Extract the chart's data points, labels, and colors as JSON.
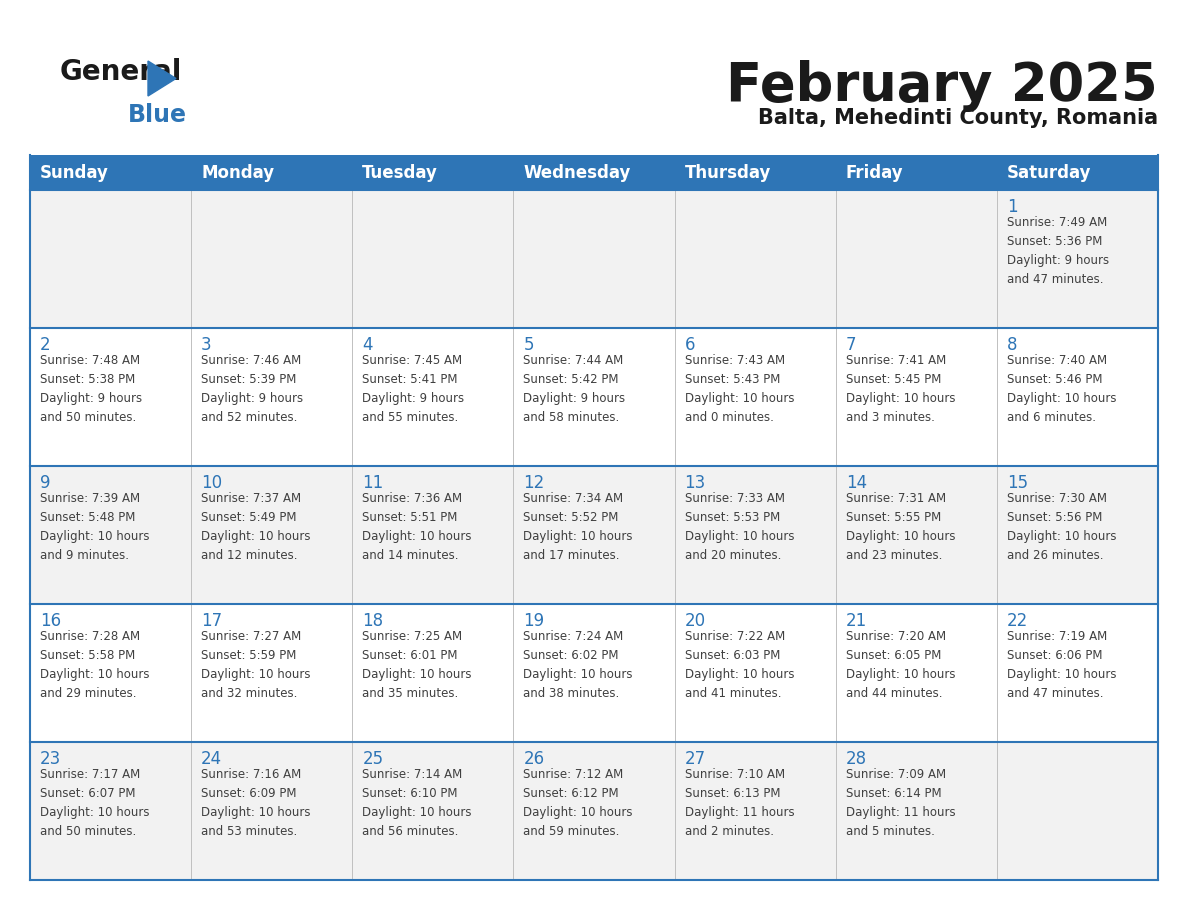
{
  "title": "February 2025",
  "subtitle": "Balta, Mehedinti County, Romania",
  "days_of_week": [
    "Sunday",
    "Monday",
    "Tuesday",
    "Wednesday",
    "Thursday",
    "Friday",
    "Saturday"
  ],
  "header_bg": "#2E75B6",
  "header_text": "#FFFFFF",
  "row_bg_odd": "#F2F2F2",
  "row_bg_even": "#FFFFFF",
  "cell_border_color": "#2E75B6",
  "cell_inner_border": "#C0C0C0",
  "day_number_color": "#2E75B6",
  "text_color": "#404040",
  "logo_general_color": "#1a1a1a",
  "logo_blue_color": "#2E75B6",
  "title_fontsize": 36,
  "subtitle_fontsize": 16,
  "header_fontsize": 12,
  "day_num_fontsize": 12,
  "cell_text_fontsize": 8.5,
  "calendar_data": [
    [
      {
        "day": "",
        "sunrise": "",
        "sunset": "",
        "daylight": ""
      },
      {
        "day": "",
        "sunrise": "",
        "sunset": "",
        "daylight": ""
      },
      {
        "day": "",
        "sunrise": "",
        "sunset": "",
        "daylight": ""
      },
      {
        "day": "",
        "sunrise": "",
        "sunset": "",
        "daylight": ""
      },
      {
        "day": "",
        "sunrise": "",
        "sunset": "",
        "daylight": ""
      },
      {
        "day": "",
        "sunrise": "",
        "sunset": "",
        "daylight": ""
      },
      {
        "day": "1",
        "sunrise": "Sunrise: 7:49 AM",
        "sunset": "Sunset: 5:36 PM",
        "daylight": "Daylight: 9 hours\nand 47 minutes."
      }
    ],
    [
      {
        "day": "2",
        "sunrise": "Sunrise: 7:48 AM",
        "sunset": "Sunset: 5:38 PM",
        "daylight": "Daylight: 9 hours\nand 50 minutes."
      },
      {
        "day": "3",
        "sunrise": "Sunrise: 7:46 AM",
        "sunset": "Sunset: 5:39 PM",
        "daylight": "Daylight: 9 hours\nand 52 minutes."
      },
      {
        "day": "4",
        "sunrise": "Sunrise: 7:45 AM",
        "sunset": "Sunset: 5:41 PM",
        "daylight": "Daylight: 9 hours\nand 55 minutes."
      },
      {
        "day": "5",
        "sunrise": "Sunrise: 7:44 AM",
        "sunset": "Sunset: 5:42 PM",
        "daylight": "Daylight: 9 hours\nand 58 minutes."
      },
      {
        "day": "6",
        "sunrise": "Sunrise: 7:43 AM",
        "sunset": "Sunset: 5:43 PM",
        "daylight": "Daylight: 10 hours\nand 0 minutes."
      },
      {
        "day": "7",
        "sunrise": "Sunrise: 7:41 AM",
        "sunset": "Sunset: 5:45 PM",
        "daylight": "Daylight: 10 hours\nand 3 minutes."
      },
      {
        "day": "8",
        "sunrise": "Sunrise: 7:40 AM",
        "sunset": "Sunset: 5:46 PM",
        "daylight": "Daylight: 10 hours\nand 6 minutes."
      }
    ],
    [
      {
        "day": "9",
        "sunrise": "Sunrise: 7:39 AM",
        "sunset": "Sunset: 5:48 PM",
        "daylight": "Daylight: 10 hours\nand 9 minutes."
      },
      {
        "day": "10",
        "sunrise": "Sunrise: 7:37 AM",
        "sunset": "Sunset: 5:49 PM",
        "daylight": "Daylight: 10 hours\nand 12 minutes."
      },
      {
        "day": "11",
        "sunrise": "Sunrise: 7:36 AM",
        "sunset": "Sunset: 5:51 PM",
        "daylight": "Daylight: 10 hours\nand 14 minutes."
      },
      {
        "day": "12",
        "sunrise": "Sunrise: 7:34 AM",
        "sunset": "Sunset: 5:52 PM",
        "daylight": "Daylight: 10 hours\nand 17 minutes."
      },
      {
        "day": "13",
        "sunrise": "Sunrise: 7:33 AM",
        "sunset": "Sunset: 5:53 PM",
        "daylight": "Daylight: 10 hours\nand 20 minutes."
      },
      {
        "day": "14",
        "sunrise": "Sunrise: 7:31 AM",
        "sunset": "Sunset: 5:55 PM",
        "daylight": "Daylight: 10 hours\nand 23 minutes."
      },
      {
        "day": "15",
        "sunrise": "Sunrise: 7:30 AM",
        "sunset": "Sunset: 5:56 PM",
        "daylight": "Daylight: 10 hours\nand 26 minutes."
      }
    ],
    [
      {
        "day": "16",
        "sunrise": "Sunrise: 7:28 AM",
        "sunset": "Sunset: 5:58 PM",
        "daylight": "Daylight: 10 hours\nand 29 minutes."
      },
      {
        "day": "17",
        "sunrise": "Sunrise: 7:27 AM",
        "sunset": "Sunset: 5:59 PM",
        "daylight": "Daylight: 10 hours\nand 32 minutes."
      },
      {
        "day": "18",
        "sunrise": "Sunrise: 7:25 AM",
        "sunset": "Sunset: 6:01 PM",
        "daylight": "Daylight: 10 hours\nand 35 minutes."
      },
      {
        "day": "19",
        "sunrise": "Sunrise: 7:24 AM",
        "sunset": "Sunset: 6:02 PM",
        "daylight": "Daylight: 10 hours\nand 38 minutes."
      },
      {
        "day": "20",
        "sunrise": "Sunrise: 7:22 AM",
        "sunset": "Sunset: 6:03 PM",
        "daylight": "Daylight: 10 hours\nand 41 minutes."
      },
      {
        "day": "21",
        "sunrise": "Sunrise: 7:20 AM",
        "sunset": "Sunset: 6:05 PM",
        "daylight": "Daylight: 10 hours\nand 44 minutes."
      },
      {
        "day": "22",
        "sunrise": "Sunrise: 7:19 AM",
        "sunset": "Sunset: 6:06 PM",
        "daylight": "Daylight: 10 hours\nand 47 minutes."
      }
    ],
    [
      {
        "day": "23",
        "sunrise": "Sunrise: 7:17 AM",
        "sunset": "Sunset: 6:07 PM",
        "daylight": "Daylight: 10 hours\nand 50 minutes."
      },
      {
        "day": "24",
        "sunrise": "Sunrise: 7:16 AM",
        "sunset": "Sunset: 6:09 PM",
        "daylight": "Daylight: 10 hours\nand 53 minutes."
      },
      {
        "day": "25",
        "sunrise": "Sunrise: 7:14 AM",
        "sunset": "Sunset: 6:10 PM",
        "daylight": "Daylight: 10 hours\nand 56 minutes."
      },
      {
        "day": "26",
        "sunrise": "Sunrise: 7:12 AM",
        "sunset": "Sunset: 6:12 PM",
        "daylight": "Daylight: 10 hours\nand 59 minutes."
      },
      {
        "day": "27",
        "sunrise": "Sunrise: 7:10 AM",
        "sunset": "Sunset: 6:13 PM",
        "daylight": "Daylight: 11 hours\nand 2 minutes."
      },
      {
        "day": "28",
        "sunrise": "Sunrise: 7:09 AM",
        "sunset": "Sunset: 6:14 PM",
        "daylight": "Daylight: 11 hours\nand 5 minutes."
      },
      {
        "day": "",
        "sunrise": "",
        "sunset": "",
        "daylight": ""
      }
    ]
  ]
}
